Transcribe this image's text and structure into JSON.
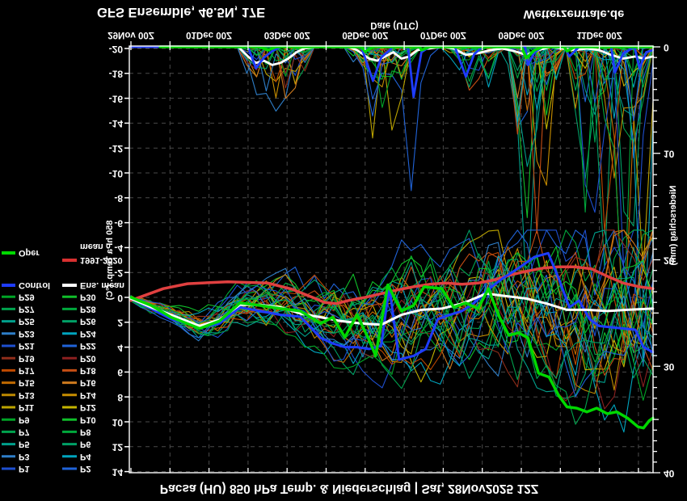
{
  "page": {
    "background": "#000000",
    "flipped_vertically": true
  },
  "titles": {
    "station_line": "Pacsa (HU) 850 hPa Temp. & Niederschlag | Sat, 28Nov2025 12Z",
    "chart_title": "GFS Ensemble, 46.5N, 17E",
    "site_credit": "Wetterzentrale.de",
    "xaxis_title": "Date (UTC)"
  },
  "axes": {
    "x": {
      "tick_labels": [
        "29Nov 00Z",
        "01Dec 00Z",
        "03Dec 00Z",
        "05Dec 00Z",
        "07Dec 00Z",
        "09Dec 00Z",
        "11Dec 00Z"
      ],
      "tick_days": [
        0,
        2,
        4,
        6,
        8,
        10,
        12
      ],
      "range_days": [
        0,
        13.37
      ]
    },
    "temp": {
      "title": "850 hPa Temp. (°C)",
      "min": -20,
      "max": 14,
      "step": 2,
      "tick_labels": [
        "-20",
        "-18",
        "-16",
        "-14",
        "-12",
        "-10",
        "-8",
        "-6",
        "-4",
        "-2",
        "0",
        "2",
        "4",
        "6",
        "8",
        "10",
        "12",
        "14"
      ]
    },
    "precip": {
      "title": "Niederschlag (mm)",
      "min": 0,
      "max": 40,
      "tick_labels": [
        "0",
        "10",
        "20",
        "30",
        "40"
      ],
      "tick_values": [
        0,
        10,
        20,
        30,
        40
      ]
    }
  },
  "colors": {
    "frame": "#ffffff",
    "grid": "#4a4a4a",
    "oper": "#00d800",
    "control": "#1e3cff",
    "ens_mean": "#ffffff",
    "clim_mean": "#e04040",
    "legend_clim_swatch": "#d83030",
    "members": [
      "#1E4FD0",
      "#2063D8",
      "#2E7EC8",
      "#00A4BE",
      "#00A08C",
      "#00A066",
      "#00A34E",
      "#00A83C",
      "#00A426",
      "#10BE2A",
      "#BCA400",
      "#C4B400",
      "#BE8A00",
      "#C88E00",
      "#C06A00",
      "#CE7A1E",
      "#C04A00",
      "#C64E14",
      "#8F2D1B",
      "#8C2020",
      "#1E4FD0",
      "#2063D8",
      "#2E7EC8",
      "#00A4BE",
      "#00A08C",
      "#00A066",
      "#00A34E",
      "#00A83C",
      "#00A426",
      "#10BE2A"
    ]
  },
  "legend": {
    "member_pairs": [
      [
        "P1",
        "P2"
      ],
      [
        "P3",
        "P4"
      ],
      [
        "P5",
        "P6"
      ],
      [
        "P7",
        "P8"
      ],
      [
        "P9",
        "P10"
      ],
      [
        "P11",
        "P12"
      ],
      [
        "P13",
        "P14"
      ],
      [
        "P15",
        "P16"
      ],
      [
        "P17",
        "P18"
      ],
      [
        "P19",
        "P20"
      ],
      [
        "P21",
        "P22"
      ],
      [
        "P23",
        "P24"
      ],
      [
        "P25",
        "P26"
      ],
      [
        "P27",
        "P28"
      ],
      [
        "P29",
        "P30"
      ]
    ],
    "control_label": "Control",
    "ens_mean_label": "Ens. mean",
    "clim_label_line1": "1991-2020",
    "clim_label_line2": "mean",
    "oper_label": "Oper"
  },
  "chart_data": {
    "type": "line",
    "subtype": "ensemble-meteogram",
    "title": "GFS Ensemble, 46.5N, 17E",
    "xlabel": "Date (UTC)",
    "ylabel_left": "850 hPa Temp. (°C)",
    "ylabel_right": "Niederschlag (mm)",
    "x_unit": "days since 29Nov2025 00Z",
    "temp_range": [
      -20,
      14
    ],
    "precip_range": [
      0,
      40
    ],
    "series": {
      "ens_mean_temp": {
        "name": "Ens. mean",
        "color": "#ffffff",
        "points": [
          [
            0,
            0.1
          ],
          [
            0.52,
            0.8
          ],
          [
            1.03,
            1.4
          ],
          [
            1.76,
            2.3
          ],
          [
            2.27,
            1.8
          ],
          [
            2.79,
            0.6
          ],
          [
            3.31,
            0.6
          ],
          [
            3.83,
            0.8
          ],
          [
            4.34,
            1.3
          ],
          [
            4.86,
            1.6
          ],
          [
            5.38,
            1.9
          ],
          [
            5.89,
            2.1
          ],
          [
            6.41,
            2.2
          ],
          [
            6.93,
            1.4
          ],
          [
            7.44,
            1.0
          ],
          [
            7.96,
            0.9
          ],
          [
            8.48,
            0.5
          ],
          [
            9.1,
            -0.3
          ],
          [
            9.62,
            -0.1
          ],
          [
            10.13,
            0.1
          ],
          [
            10.65,
            0.5
          ],
          [
            11.17,
            1.0
          ],
          [
            11.68,
            1.0
          ],
          [
            12.2,
            1.1
          ],
          [
            12.72,
            1.0
          ],
          [
            13.37,
            0.9
          ]
        ]
      },
      "oper_temp": {
        "name": "Oper",
        "color": "#00d800",
        "points": [
          [
            0,
            0.0
          ],
          [
            0.52,
            0.65
          ],
          [
            1.03,
            1.6
          ],
          [
            1.76,
            2.5
          ],
          [
            2.27,
            1.9
          ],
          [
            2.79,
            0.45
          ],
          [
            3.31,
            0.65
          ],
          [
            3.83,
            0.9
          ],
          [
            4.34,
            1.1
          ],
          [
            4.86,
            2.1
          ],
          [
            5.17,
            1.6
          ],
          [
            5.48,
            3.2
          ],
          [
            5.79,
            1.4
          ],
          [
            6.1,
            3.4
          ],
          [
            6.27,
            4.7
          ],
          [
            6.58,
            -1.0
          ],
          [
            6.93,
            1.1
          ],
          [
            7.24,
            0.65
          ],
          [
            7.51,
            -0.85
          ],
          [
            7.96,
            -0.7
          ],
          [
            8.27,
            0.8
          ],
          [
            8.58,
            0.45
          ],
          [
            8.89,
            0.9
          ],
          [
            9.16,
            -0.7
          ],
          [
            9.41,
            1.4
          ],
          [
            9.68,
            3.05
          ],
          [
            9.93,
            2.85
          ],
          [
            10.17,
            3.25
          ],
          [
            10.44,
            6.1
          ],
          [
            10.71,
            6.4
          ],
          [
            10.96,
            7.9
          ],
          [
            11.17,
            8.8
          ],
          [
            11.42,
            8.9
          ],
          [
            11.68,
            9.2
          ],
          [
            11.93,
            8.9
          ],
          [
            12.2,
            9.35
          ],
          [
            12.45,
            9.2
          ],
          [
            12.72,
            9.7
          ],
          [
            12.99,
            10.4
          ],
          [
            13.13,
            10.5
          ],
          [
            13.28,
            9.9
          ],
          [
            13.37,
            9.7
          ]
        ]
      },
      "control_temp": {
        "name": "Control",
        "color": "#1e3cff",
        "points": [
          [
            0,
            0.1
          ],
          [
            0.52,
            0.9
          ],
          [
            1.03,
            1.75
          ],
          [
            1.76,
            2.4
          ],
          [
            2.27,
            2.1
          ],
          [
            2.79,
            0.8
          ],
          [
            3.31,
            1.1
          ],
          [
            3.83,
            1.4
          ],
          [
            4.34,
            1.55
          ],
          [
            4.86,
            3.25
          ],
          [
            5.17,
            3.7
          ],
          [
            5.48,
            4.0
          ],
          [
            5.79,
            4.0
          ],
          [
            6.1,
            4.15
          ],
          [
            6.41,
            3.9
          ],
          [
            6.62,
            -0.85
          ],
          [
            6.87,
            5.0
          ],
          [
            7.24,
            4.7
          ],
          [
            7.55,
            4.15
          ],
          [
            7.86,
            1.75
          ],
          [
            8.17,
            1.4
          ],
          [
            8.48,
            1.1
          ],
          [
            8.79,
            0.45
          ],
          [
            9.1,
            -0.5
          ],
          [
            9.51,
            -1.5
          ],
          [
            9.93,
            -2.35
          ],
          [
            10.34,
            -3.25
          ],
          [
            10.69,
            -3.55
          ],
          [
            10.96,
            -1.5
          ],
          [
            11.23,
            0.8
          ],
          [
            11.48,
            0.25
          ],
          [
            11.75,
            1.75
          ],
          [
            11.99,
            2.3
          ],
          [
            12.3,
            2.4
          ],
          [
            12.61,
            2.5
          ],
          [
            12.92,
            2.6
          ],
          [
            13.13,
            4.0
          ],
          [
            13.37,
            4.4
          ]
        ]
      },
      "clim_mean_temp": {
        "name": "mean 1991-2020",
        "color": "#e04040",
        "points": [
          [
            0,
            0.25
          ],
          [
            0.83,
            -0.7
          ],
          [
            1.45,
            -1.1
          ],
          [
            2.48,
            -1.25
          ],
          [
            3.51,
            -1.15
          ],
          [
            4.13,
            -0.65
          ],
          [
            4.65,
            0.0
          ],
          [
            4.96,
            0.4
          ],
          [
            5.27,
            0.5
          ],
          [
            5.58,
            0.25
          ],
          [
            6.0,
            0.0
          ],
          [
            6.41,
            -0.3
          ],
          [
            6.82,
            -0.6
          ],
          [
            7.24,
            -0.85
          ],
          [
            7.65,
            -1.05
          ],
          [
            8.06,
            -1.15
          ],
          [
            8.48,
            -1.05
          ],
          [
            8.89,
            -1.15
          ],
          [
            9.31,
            -1.4
          ],
          [
            9.72,
            -1.8
          ],
          [
            10.13,
            -2.1
          ],
          [
            10.55,
            -2.35
          ],
          [
            10.96,
            -2.45
          ],
          [
            11.37,
            -2.45
          ],
          [
            11.79,
            -2.3
          ],
          [
            12.2,
            -1.7
          ],
          [
            12.61,
            -1.15
          ],
          [
            13.03,
            -0.85
          ],
          [
            13.37,
            -0.7
          ]
        ]
      },
      "ens_mean_precip": {
        "name": "Ens. mean precip",
        "color": "#ffffff",
        "points": [
          [
            0,
            0
          ],
          [
            2.75,
            0
          ],
          [
            3.0,
            0.9
          ],
          [
            3.2,
            1.5
          ],
          [
            3.41,
            1.3
          ],
          [
            3.62,
            1.7
          ],
          [
            3.83,
            1.5
          ],
          [
            4.03,
            1.1
          ],
          [
            4.24,
            0.5
          ],
          [
            4.44,
            0.15
          ],
          [
            4.76,
            0
          ],
          [
            5.58,
            0
          ],
          [
            5.79,
            0.3
          ],
          [
            6.1,
            1.1
          ],
          [
            6.31,
            1.3
          ],
          [
            6.51,
            0.9
          ],
          [
            6.72,
            0.5
          ],
          [
            6.93,
            1.1
          ],
          [
            7.13,
            0.9
          ],
          [
            7.34,
            0.3
          ],
          [
            7.65,
            0.15
          ],
          [
            7.96,
            0
          ],
          [
            8.27,
            0.15
          ],
          [
            8.58,
            0.75
          ],
          [
            8.89,
            0.6
          ],
          [
            9.2,
            0.3
          ],
          [
            9.51,
            0.15
          ],
          [
            9.82,
            0.4
          ],
          [
            10.13,
            0.75
          ],
          [
            10.44,
            0.3
          ],
          [
            10.75,
            0
          ],
          [
            11.06,
            0.15
          ],
          [
            11.37,
            0.3
          ],
          [
            11.68,
            0.15
          ],
          [
            11.99,
            0.3
          ],
          [
            12.3,
            0.75
          ],
          [
            12.61,
            1.1
          ],
          [
            12.92,
            0.9
          ],
          [
            13.13,
            1.1
          ],
          [
            13.37,
            0.9
          ]
        ]
      },
      "oper_precip": {
        "name": "Oper precip",
        "color": "#00d800",
        "points": [
          [
            0.75,
            0
          ],
          [
            3.3,
            0
          ],
          [
            3.51,
            0.3
          ],
          [
            3.72,
            0
          ],
          [
            5.9,
            0
          ],
          [
            6.0,
            0.45
          ],
          [
            6.2,
            0
          ],
          [
            7.4,
            0
          ],
          [
            7.44,
            0.3
          ],
          [
            7.65,
            0
          ],
          [
            10.0,
            0
          ],
          [
            10.13,
            1.05
          ],
          [
            10.34,
            0.3
          ],
          [
            10.55,
            0
          ],
          [
            11.1,
            0
          ],
          [
            11.17,
            0.4
          ],
          [
            11.37,
            0
          ],
          [
            13.37,
            0
          ]
        ]
      },
      "control_precip": {
        "name": "Control precip",
        "color": "#1e3cff",
        "points": [
          [
            0,
            0
          ],
          [
            3.0,
            0
          ],
          [
            3.2,
            2.0
          ],
          [
            3.41,
            1.0
          ],
          [
            3.62,
            0.4
          ],
          [
            3.83,
            0
          ],
          [
            5.9,
            0
          ],
          [
            6.2,
            3.2
          ],
          [
            6.41,
            1.0
          ],
          [
            6.72,
            0
          ],
          [
            7.1,
            0
          ],
          [
            7.24,
            4.7
          ],
          [
            7.44,
            0.5
          ],
          [
            7.65,
            0
          ],
          [
            8.3,
            0
          ],
          [
            8.58,
            2.8
          ],
          [
            8.79,
            0.7
          ],
          [
            9.0,
            0
          ],
          [
            10.1,
            0
          ],
          [
            10.17,
            1.7
          ],
          [
            10.34,
            0.5
          ],
          [
            10.55,
            0
          ],
          [
            11.1,
            0
          ],
          [
            11.23,
            0.9
          ],
          [
            11.48,
            0
          ],
          [
            12.3,
            0
          ],
          [
            12.4,
            2.4
          ],
          [
            12.61,
            0.6
          ],
          [
            12.9,
            0
          ],
          [
            13.03,
            2.0
          ],
          [
            13.2,
            0.5
          ],
          [
            13.37,
            0.3
          ]
        ]
      }
    },
    "members": {
      "count": 30,
      "seed": 20251128,
      "steps": 55,
      "temp_spread_start_c": 0.35,
      "temp_spread_end_c": 6.8,
      "temp_bias_max_c": 3.0,
      "temp_clamp_c": [
        -5.4,
        13.6
      ],
      "precip_events": [
        {
          "t0": 2.75,
          "t1": 4.7,
          "max_mm": 9
        },
        {
          "t0": 5.55,
          "t1": 7.4,
          "max_mm": 13
        },
        {
          "t0": 8.1,
          "t1": 9.5,
          "max_mm": 7
        },
        {
          "t0": 9.7,
          "t1": 11.0,
          "max_mm": 22
        },
        {
          "t0": 11.2,
          "t1": 13.37,
          "max_mm": 30
        }
      ],
      "precip_outliers": [
        {
          "member": 14,
          "t": 12.55,
          "mm": 28
        },
        {
          "member": 1,
          "t": 7.2,
          "mm": 13.5
        },
        {
          "member": 4,
          "t": 10.17,
          "mm": 24
        },
        {
          "member": 23,
          "t": 13.17,
          "mm": 30
        },
        {
          "member": 10,
          "t": 13.0,
          "mm": 21
        },
        {
          "member": 20,
          "t": 12.8,
          "mm": 25
        },
        {
          "member": 21,
          "t": 6.1,
          "mm": 6.5
        }
      ]
    }
  }
}
